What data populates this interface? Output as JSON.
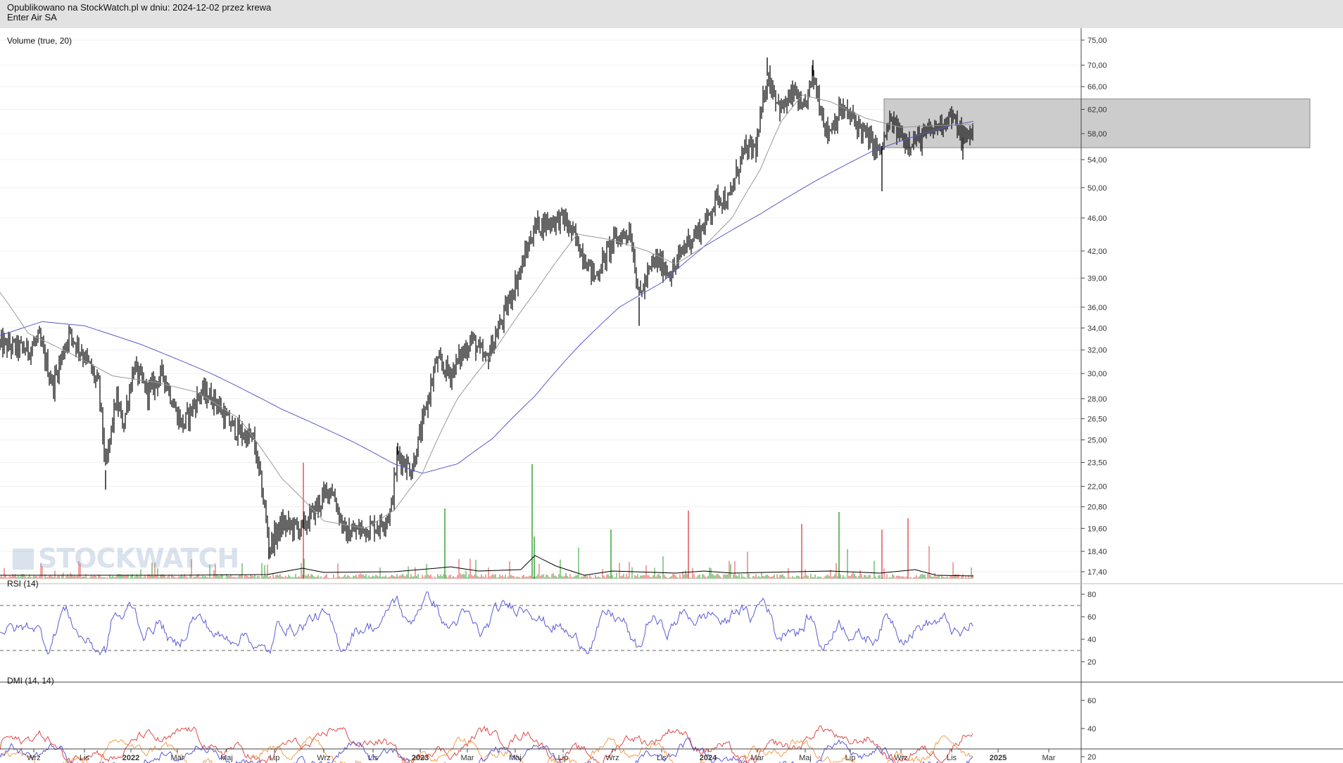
{
  "header": {
    "line1": "Opublikowano na StockWatch.pl w dniu: 2024-12-02 przez krewa",
    "line2": "Enter Air SA"
  },
  "watermark": "STOCKWATCH",
  "colors": {
    "candle": "#000000",
    "ma_short": "#999999",
    "ma_long": "#5a5acd",
    "vol_up": "#2e9e2e",
    "vol_down": "#e04a4a",
    "vol_avg": "#000000",
    "rsi": "#5a5ad6",
    "dmi_plus": "#5a5ad6",
    "dmi_minus": "#f0a050",
    "adx": "#e04a4a",
    "zone": "#cccccc"
  },
  "chart_data": [
    {
      "type": "candlestick",
      "name": "price",
      "labels": {
        "volume_label": "Volume (true, 20)"
      },
      "y_ticks": [
        "75,00",
        "70,00",
        "66,00",
        "62,00",
        "58,00",
        "54,00",
        "50,00",
        "46,00",
        "42,00",
        "39,00",
        "36,00",
        "34,00",
        "32,00",
        "30,00",
        "28,00",
        "26,50",
        "25,00",
        "23,50",
        "22,00",
        "20,80",
        "19,60",
        "18,40",
        "17,40"
      ],
      "y_scale": "log",
      "x_ticks": [
        "Wrz",
        "Lis",
        "2022",
        "Mar",
        "Maj",
        "Lip",
        "Wrz",
        "Lis",
        "2023",
        "Mar",
        "Maj",
        "Lip",
        "Wrz",
        "Lis",
        "2024",
        "Mar",
        "Maj",
        "Lip",
        "Wrz",
        "Lis",
        "2025",
        "Mar"
      ],
      "close_approx": [
        {
          "t": 0,
          "v": 32.5
        },
        {
          "t": 40,
          "v": 32
        },
        {
          "t": 55,
          "v": 33
        },
        {
          "t": 75,
          "v": 29
        },
        {
          "t": 98,
          "v": 33.5
        },
        {
          "t": 120,
          "v": 31.5
        },
        {
          "t": 140,
          "v": 29
        },
        {
          "t": 150,
          "v": 23
        },
        {
          "t": 165,
          "v": 28
        },
        {
          "t": 175,
          "v": 26
        },
        {
          "t": 190,
          "v": 30.5
        },
        {
          "t": 210,
          "v": 28.5
        },
        {
          "t": 232,
          "v": 30
        },
        {
          "t": 250,
          "v": 27
        },
        {
          "t": 260,
          "v": 26
        },
        {
          "t": 285,
          "v": 28.5
        },
        {
          "t": 305,
          "v": 28
        },
        {
          "t": 320,
          "v": 26.5
        },
        {
          "t": 340,
          "v": 25.5
        },
        {
          "t": 360,
          "v": 25
        },
        {
          "t": 375,
          "v": 21
        },
        {
          "t": 382,
          "v": 18.6
        },
        {
          "t": 400,
          "v": 19.8
        },
        {
          "t": 430,
          "v": 19.6
        },
        {
          "t": 450,
          "v": 20.8
        },
        {
          "t": 470,
          "v": 22
        },
        {
          "t": 490,
          "v": 19.3
        },
        {
          "t": 510,
          "v": 19.5
        },
        {
          "t": 540,
          "v": 19.8
        },
        {
          "t": 555,
          "v": 20.5
        },
        {
          "t": 565,
          "v": 24
        },
        {
          "t": 585,
          "v": 23
        },
        {
          "t": 600,
          "v": 26
        },
        {
          "t": 620,
          "v": 31
        },
        {
          "t": 640,
          "v": 30
        },
        {
          "t": 670,
          "v": 33
        },
        {
          "t": 690,
          "v": 31
        },
        {
          "t": 715,
          "v": 35
        },
        {
          "t": 740,
          "v": 40
        },
        {
          "t": 760,
          "v": 45
        },
        {
          "t": 780,
          "v": 45.5
        },
        {
          "t": 800,
          "v": 46
        },
        {
          "t": 820,
          "v": 43
        },
        {
          "t": 845,
          "v": 39
        },
        {
          "t": 870,
          "v": 43
        },
        {
          "t": 895,
          "v": 44.5
        },
        {
          "t": 908,
          "v": 37
        },
        {
          "t": 930,
          "v": 41
        },
        {
          "t": 955,
          "v": 39.5
        },
        {
          "t": 975,
          "v": 43
        },
        {
          "t": 1000,
          "v": 45
        },
        {
          "t": 1020,
          "v": 49
        },
        {
          "t": 1035,
          "v": 48
        },
        {
          "t": 1055,
          "v": 55
        },
        {
          "t": 1075,
          "v": 56
        },
        {
          "t": 1090,
          "v": 68
        },
        {
          "t": 1110,
          "v": 62
        },
        {
          "t": 1130,
          "v": 65
        },
        {
          "t": 1140,
          "v": 61
        },
        {
          "t": 1155,
          "v": 68
        },
        {
          "t": 1175,
          "v": 58
        },
        {
          "t": 1195,
          "v": 62
        },
        {
          "t": 1215,
          "v": 60
        },
        {
          "t": 1235,
          "v": 57
        },
        {
          "t": 1250,
          "v": 55
        },
        {
          "t": 1265,
          "v": 60
        },
        {
          "t": 1285,
          "v": 57
        },
        {
          "t": 1305,
          "v": 57
        },
        {
          "t": 1330,
          "v": 59
        },
        {
          "t": 1350,
          "v": 61
        },
        {
          "t": 1370,
          "v": 57
        },
        {
          "t": 1383,
          "v": 59
        }
      ],
      "ma_long_approx": [
        {
          "t": 0,
          "v": 33.3
        },
        {
          "t": 60,
          "v": 34.6
        },
        {
          "t": 120,
          "v": 34.2
        },
        {
          "t": 200,
          "v": 32.5
        },
        {
          "t": 300,
          "v": 30
        },
        {
          "t": 400,
          "v": 27.2
        },
        {
          "t": 500,
          "v": 24.9
        },
        {
          "t": 560,
          "v": 23.4
        },
        {
          "t": 600,
          "v": 22.8
        },
        {
          "t": 650,
          "v": 23.4
        },
        {
          "t": 700,
          "v": 25.1
        },
        {
          "t": 760,
          "v": 28.2
        },
        {
          "t": 820,
          "v": 32.2
        },
        {
          "t": 880,
          "v": 36
        },
        {
          "t": 940,
          "v": 38.5
        },
        {
          "t": 1000,
          "v": 42.5
        },
        {
          "t": 1080,
          "v": 46.5
        },
        {
          "t": 1160,
          "v": 51
        },
        {
          "t": 1240,
          "v": 55.3
        },
        {
          "t": 1300,
          "v": 57.6
        },
        {
          "t": 1350,
          "v": 59.3
        },
        {
          "t": 1383,
          "v": 60
        }
      ],
      "ma_short_approx": [
        {
          "t": 0,
          "v": 37.5
        },
        {
          "t": 40,
          "v": 33.5
        },
        {
          "t": 100,
          "v": 31.7
        },
        {
          "t": 160,
          "v": 29.8
        },
        {
          "t": 220,
          "v": 29.3
        },
        {
          "t": 280,
          "v": 28.5
        },
        {
          "t": 340,
          "v": 26.5
        },
        {
          "t": 400,
          "v": 22.5
        },
        {
          "t": 460,
          "v": 20
        },
        {
          "t": 520,
          "v": 19.6
        },
        {
          "t": 560,
          "v": 20.6
        },
        {
          "t": 600,
          "v": 22.8
        },
        {
          "t": 650,
          "v": 28
        },
        {
          "t": 700,
          "v": 31.7
        },
        {
          "t": 760,
          "v": 37.5
        },
        {
          "t": 820,
          "v": 44
        },
        {
          "t": 870,
          "v": 43.3
        },
        {
          "t": 920,
          "v": 42
        },
        {
          "t": 960,
          "v": 40.5
        },
        {
          "t": 1000,
          "v": 42.5
        },
        {
          "t": 1040,
          "v": 46
        },
        {
          "t": 1080,
          "v": 52.5
        },
        {
          "t": 1110,
          "v": 60
        },
        {
          "t": 1140,
          "v": 64.5
        },
        {
          "t": 1180,
          "v": 63.3
        },
        {
          "t": 1230,
          "v": 60.5
        },
        {
          "t": 1280,
          "v": 59
        },
        {
          "t": 1330,
          "v": 59.3
        },
        {
          "t": 1383,
          "v": 59.5
        }
      ],
      "zone": {
        "y_min": 55.8,
        "y_max": 63.8
      }
    },
    {
      "type": "line",
      "name": "RSI (14)",
      "y_ticks": [
        "80",
        "60",
        "40",
        "20"
      ],
      "ylim": [
        20,
        85
      ],
      "levels": [
        70,
        30
      ]
    },
    {
      "type": "line",
      "name": "DMI (14, 14)",
      "y_ticks": [
        "60",
        "40",
        "20"
      ],
      "ylim": [
        5,
        60
      ],
      "series": [
        "adx",
        "plus_di",
        "minus_di"
      ]
    }
  ]
}
